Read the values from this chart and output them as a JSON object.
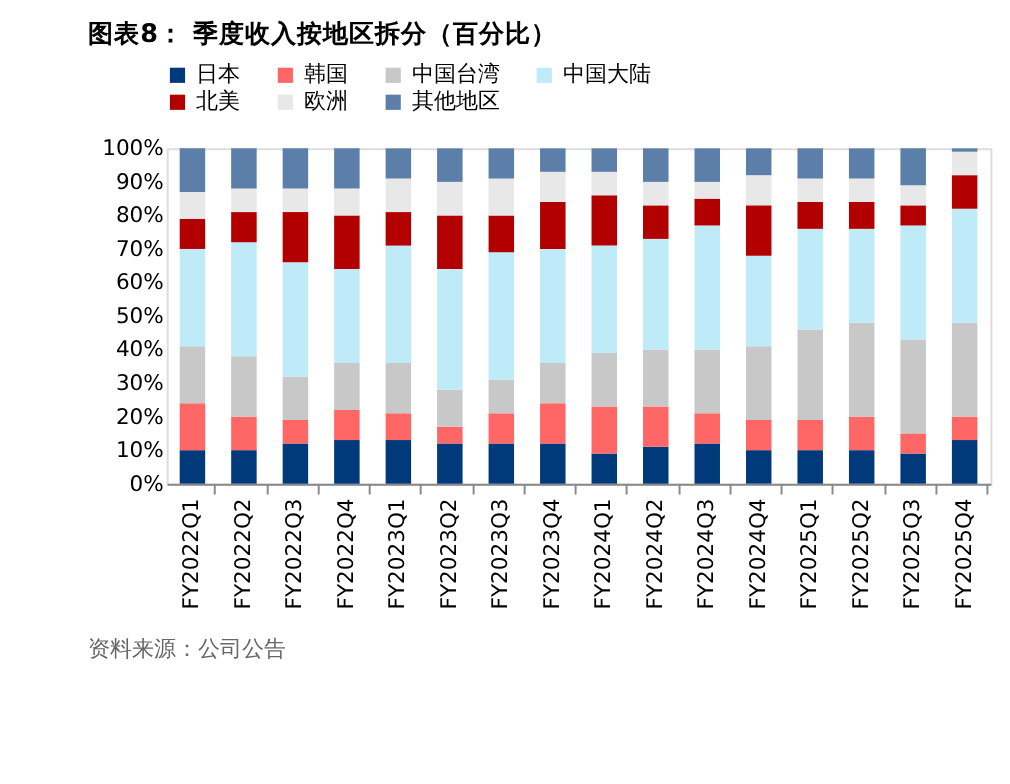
{
  "chart_data": {
    "type": "bar",
    "title": "图表8：  季度收入按地区拆分（百分比）",
    "stacked": true,
    "categories": [
      "FY2022Q1",
      "FY2022Q2",
      "FY2022Q3",
      "FY2022Q4",
      "FY2023Q1",
      "FY2023Q2",
      "FY2023Q3",
      "FY2023Q4",
      "FY2024Q1",
      "FY2024Q2",
      "FY2024Q3",
      "FY2024Q4",
      "FY2025Q1",
      "FY2025Q2",
      "FY2025Q3",
      "FY2025Q4"
    ],
    "series": [
      {
        "name": "日本",
        "color": "#003a7a",
        "values": [
          10,
          10,
          12,
          13,
          13,
          12,
          12,
          12,
          9,
          11,
          12,
          10,
          10,
          10,
          9,
          13
        ]
      },
      {
        "name": "韩国",
        "color": "#ff6666",
        "values": [
          14,
          10,
          7,
          9,
          8,
          5,
          9,
          12,
          14,
          12,
          9,
          9,
          9,
          10,
          6,
          7
        ]
      },
      {
        "name": "中国台湾",
        "color": "#c8c8c8",
        "values": [
          17,
          18,
          13,
          14,
          15,
          11,
          10,
          12,
          16,
          17,
          19,
          22,
          27,
          28,
          28,
          28
        ]
      },
      {
        "name": "中国大陆",
        "color": "#bfeaf8",
        "values": [
          29,
          34,
          34,
          28,
          35,
          36,
          38,
          34,
          32,
          33,
          37,
          27,
          30,
          28,
          34,
          34
        ]
      },
      {
        "name": "北美",
        "color": "#b20000",
        "values": [
          9,
          9,
          15,
          16,
          10,
          16,
          11,
          14,
          15,
          10,
          8,
          15,
          8,
          8,
          6,
          10
        ]
      },
      {
        "name": "欧洲",
        "color": "#e8e8e8",
        "values": [
          8,
          7,
          7,
          8,
          10,
          10,
          11,
          9,
          7,
          7,
          5,
          9,
          7,
          7,
          6,
          7
        ]
      },
      {
        "name": "其他地区",
        "color": "#5b7fa8",
        "values": [
          13,
          12,
          12,
          12,
          9,
          10,
          9,
          7,
          7,
          10,
          10,
          8,
          9,
          9,
          11,
          1
        ]
      }
    ],
    "ylim": [
      0,
      100
    ],
    "yticks": [
      {
        "value": 0,
        "label": "0%"
      },
      {
        "value": 10,
        "label": "10%"
      },
      {
        "value": 20,
        "label": "20%"
      },
      {
        "value": 30,
        "label": "30%"
      },
      {
        "value": 40,
        "label": "40%"
      },
      {
        "value": 50,
        "label": "50%"
      },
      {
        "value": 60,
        "label": "60%"
      },
      {
        "value": 70,
        "label": "70%"
      },
      {
        "value": 80,
        "label": "80%"
      },
      {
        "value": 90,
        "label": "90%"
      },
      {
        "value": 100,
        "label": "100%"
      }
    ],
    "grid": false,
    "legend": "top",
    "annotations": [
      "资料来源：公司公告"
    ]
  }
}
